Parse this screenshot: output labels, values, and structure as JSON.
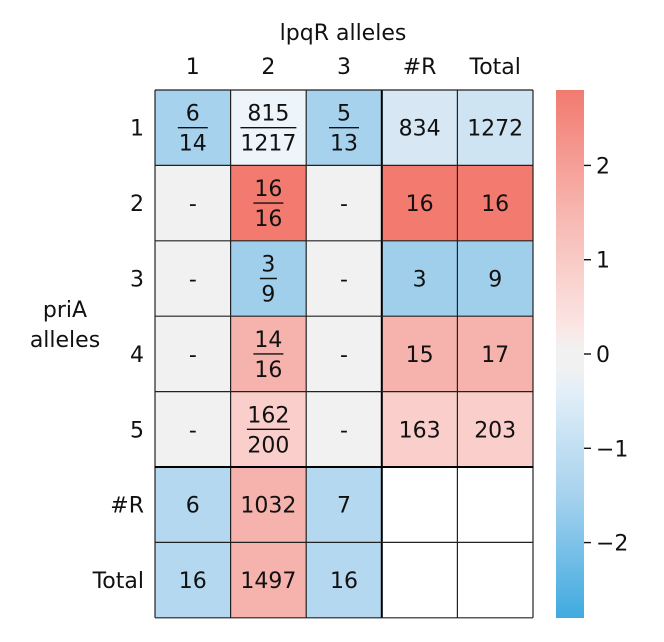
{
  "chart_data": {
    "type": "heatmap",
    "col_axis_title": "lpqR alleles",
    "row_axis_title": [
      "priA",
      "alleles"
    ],
    "col_labels": [
      "1",
      "2",
      "3",
      "#R",
      "Total"
    ],
    "row_labels": [
      "1",
      "2",
      "3",
      "4",
      "5",
      "#R",
      "Total"
    ],
    "cells": [
      [
        {
          "num": "6",
          "den": "14",
          "color": "#a6d2ee"
        },
        {
          "num": "815",
          "den": "1217",
          "color": "#eef5fa"
        },
        {
          "num": "5",
          "den": "13",
          "color": "#a6d2ee"
        },
        {
          "text": "834",
          "color": "#d7e8f4"
        },
        {
          "text": "1272",
          "color": "#cfe4f3"
        }
      ],
      [
        {
          "text": "-",
          "color": "#f1f1f1"
        },
        {
          "num": "16",
          "den": "16",
          "color": "#f27a6f"
        },
        {
          "text": "-",
          "color": "#f1f1f1"
        },
        {
          "text": "16",
          "color": "#f27a6f"
        },
        {
          "text": "16",
          "color": "#f27a6f"
        }
      ],
      [
        {
          "text": "-",
          "color": "#f1f1f1"
        },
        {
          "num": "3",
          "den": "9",
          "color": "#a0cfec"
        },
        {
          "text": "-",
          "color": "#f1f1f1"
        },
        {
          "text": "3",
          "color": "#a0cfec"
        },
        {
          "text": "9",
          "color": "#a0cfec"
        }
      ],
      [
        {
          "text": "-",
          "color": "#f1f1f1"
        },
        {
          "num": "14",
          "den": "16",
          "color": "#f6b3ad"
        },
        {
          "text": "-",
          "color": "#f1f1f1"
        },
        {
          "text": "15",
          "color": "#f6b3ad"
        },
        {
          "text": "17",
          "color": "#f6b3ad"
        }
      ],
      [
        {
          "text": "-",
          "color": "#f1f1f1"
        },
        {
          "num": "162",
          "den": "200",
          "color": "#f9cecb"
        },
        {
          "text": "-",
          "color": "#f1f1f1"
        },
        {
          "text": "163",
          "color": "#f9cecb"
        },
        {
          "text": "203",
          "color": "#f9cecb"
        }
      ],
      [
        {
          "text": "6",
          "color": "#b3d8f0"
        },
        {
          "text": "1032",
          "color": "#f6b3ad"
        },
        {
          "text": "7",
          "color": "#b3d8f0"
        },
        {
          "text": "",
          "color": "#ffffff"
        },
        {
          "text": "",
          "color": "#ffffff"
        }
      ],
      [
        {
          "text": "16",
          "color": "#b3d8f0"
        },
        {
          "text": "1497",
          "color": "#f6b3ad"
        },
        {
          "text": "16",
          "color": "#b3d8f0"
        },
        {
          "text": "",
          "color": "#ffffff"
        },
        {
          "text": "",
          "color": "#ffffff"
        }
      ]
    ],
    "colorbar": {
      "range": [
        -2.8,
        2.8
      ],
      "ticks": [
        2,
        1,
        0,
        -1,
        -2
      ],
      "tick_labels": [
        "2",
        "1",
        "0",
        "−1",
        "−2"
      ],
      "stops": [
        {
          "v": 2.8,
          "color": "#f27a6f"
        },
        {
          "v": 1.5,
          "color": "#f7b6b0"
        },
        {
          "v": 0.3,
          "color": "#fbe5e3"
        },
        {
          "v": 0.05,
          "color": "#f1f1f1"
        },
        {
          "v": -0.15,
          "color": "#f1f1f1"
        },
        {
          "v": -0.4,
          "color": "#e2eff8"
        },
        {
          "v": -1.5,
          "color": "#a6d2ee"
        },
        {
          "v": -2.8,
          "color": "#40aadf"
        }
      ]
    }
  }
}
